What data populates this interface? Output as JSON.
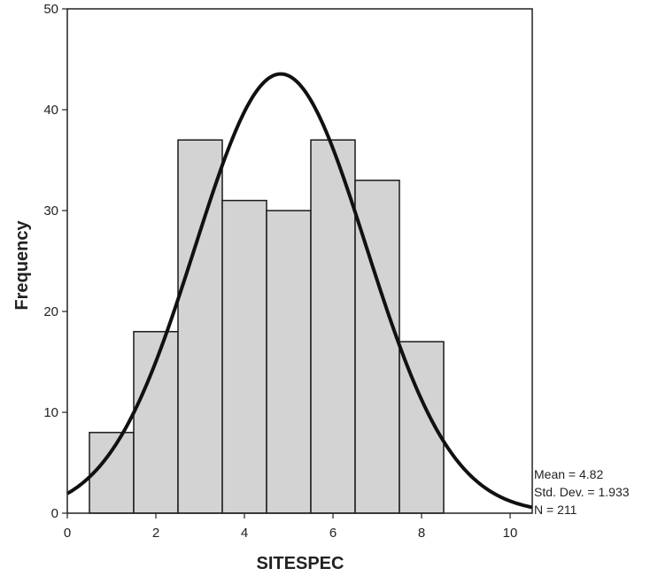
{
  "chart_data": {
    "type": "bar",
    "subtype": "histogram",
    "title": "",
    "xlabel": "SITESPEC",
    "ylabel": "Frequency",
    "xlim": [
      0,
      10.5
    ],
    "ylim": [
      0,
      50
    ],
    "x_ticks": [
      0,
      2,
      4,
      6,
      8,
      10
    ],
    "y_ticks": [
      0,
      10,
      20,
      30,
      40,
      50
    ],
    "bins": [
      {
        "x0": 0.5,
        "x1": 1.5,
        "value": 8
      },
      {
        "x0": 1.5,
        "x1": 2.5,
        "value": 18
      },
      {
        "x0": 2.5,
        "x1": 3.5,
        "value": 37
      },
      {
        "x0": 3.5,
        "x1": 4.5,
        "value": 31
      },
      {
        "x0": 4.5,
        "x1": 5.5,
        "value": 30
      },
      {
        "x0": 5.5,
        "x1": 6.5,
        "value": 37
      },
      {
        "x0": 6.5,
        "x1": 7.5,
        "value": 33
      },
      {
        "x0": 7.5,
        "x1": 8.5,
        "value": 17
      }
    ],
    "normal_curve": {
      "mean": 4.82,
      "sd": 1.933,
      "n": 211,
      "bin_width": 1
    },
    "stats": {
      "mean_label": "Mean = 4.82",
      "sd_label": "Std. Dev. = 1.933",
      "n_label": "N = 211"
    },
    "grid": false,
    "colors": {
      "bar_fill": "#d3d3d3",
      "bar_stroke": "#1a1a1a",
      "curve": "#111111",
      "axis": "#222222"
    }
  }
}
